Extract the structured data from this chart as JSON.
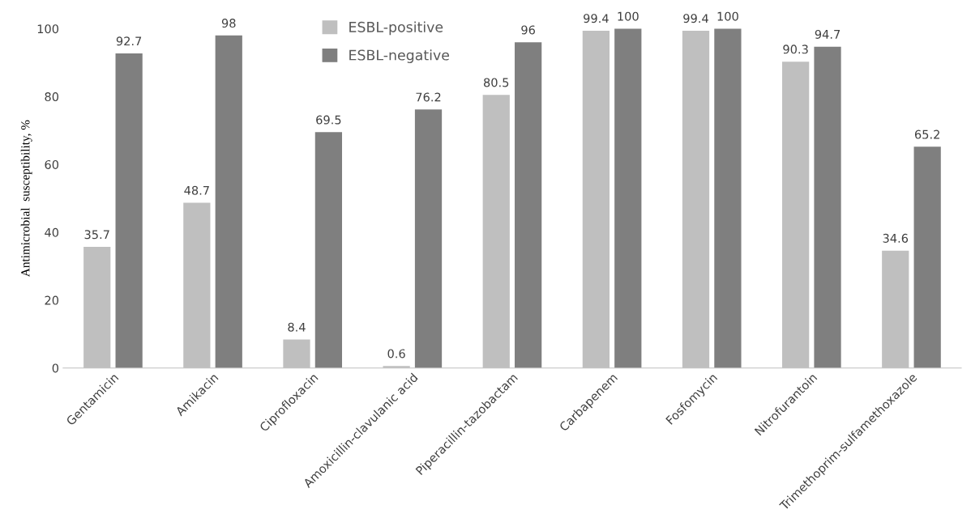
{
  "chart_data": {
    "type": "bar",
    "ylabel": "Antimicrobial  susceptibility, %",
    "categories": [
      "Gentamicin",
      "Amikacin",
      "Ciprofloxacin",
      "Amoxicillin-clavulanic acid",
      "Piperacillin-tazobactam",
      "Carbapenem",
      "Fosfomycin",
      "Nitrofurantoin",
      "Trimethoprim-sulfamethoxazole"
    ],
    "series": [
      {
        "name": "ESBL-positive",
        "color": "#bfbfbf",
        "values": [
          35.7,
          48.7,
          8.4,
          0.6,
          80.5,
          99.4,
          99.4,
          90.3,
          34.6
        ]
      },
      {
        "name": "ESBL-negative",
        "color": "#7f7f7f",
        "values": [
          92.7,
          98,
          69.5,
          76.2,
          96,
          100,
          100,
          94.7,
          65.2
        ]
      }
    ],
    "ylim": [
      0,
      100
    ],
    "yticks": [
      0,
      20,
      40,
      60,
      80,
      100
    ],
    "grid": false,
    "legend": "top",
    "data_labels": true
  }
}
